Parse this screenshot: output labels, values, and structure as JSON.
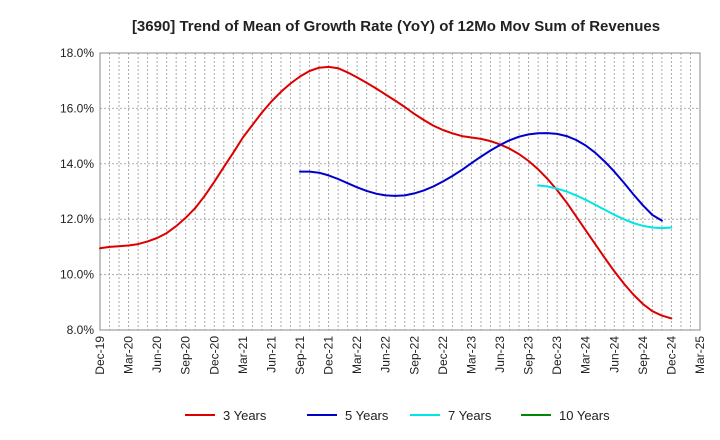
{
  "chart_data": {
    "type": "line",
    "title": "[3690]  Trend of Mean of Growth Rate (YoY) of 12Mo Mov Sum of Revenues",
    "xlabel": "",
    "ylabel": "",
    "ylim": [
      8.0,
      18.0
    ],
    "y_ticks": [
      "8.0%",
      "10.0%",
      "12.0%",
      "14.0%",
      "16.0%",
      "18.0%"
    ],
    "y_tick_values": [
      8,
      10,
      12,
      14,
      16,
      18
    ],
    "x_ticks": [
      "Dec-19",
      "Mar-20",
      "Jun-20",
      "Sep-20",
      "Dec-20",
      "Mar-21",
      "Jun-21",
      "Sep-21",
      "Dec-21",
      "Mar-22",
      "Jun-22",
      "Sep-22",
      "Dec-22",
      "Mar-23",
      "Jun-23",
      "Sep-23",
      "Dec-23",
      "Mar-24",
      "Jun-24",
      "Sep-24",
      "Dec-24",
      "Mar-25"
    ],
    "grid": true,
    "legend_position": "bottom",
    "series": [
      {
        "name": "3 Years",
        "color": "#dd0000",
        "start_index": 0,
        "values": [
          10.95,
          11.0,
          11.02,
          11.05,
          11.1,
          11.2,
          11.32,
          11.5,
          11.75,
          12.05,
          12.4,
          12.85,
          13.35,
          13.88,
          14.4,
          14.95,
          15.4,
          15.85,
          16.25,
          16.6,
          16.9,
          17.15,
          17.35,
          17.47,
          17.5,
          17.45,
          17.3,
          17.12,
          16.92,
          16.72,
          16.5,
          16.28,
          16.05,
          15.8,
          15.58,
          15.38,
          15.22,
          15.1,
          15.0,
          14.95,
          14.9,
          14.82,
          14.7,
          14.55,
          14.35,
          14.1,
          13.8,
          13.45,
          13.05,
          12.6,
          12.1,
          11.6,
          11.1,
          10.6,
          10.12,
          9.68,
          9.28,
          8.94,
          8.68,
          8.52,
          8.42
        ]
      },
      {
        "name": "5 Years",
        "color": "#0000cc",
        "start_index": 21,
        "values": [
          13.72,
          13.72,
          13.68,
          13.58,
          13.45,
          13.3,
          13.15,
          13.02,
          12.92,
          12.86,
          12.84,
          12.86,
          12.93,
          13.04,
          13.18,
          13.36,
          13.56,
          13.78,
          14.02,
          14.26,
          14.48,
          14.68,
          14.85,
          14.98,
          15.06,
          15.1,
          15.11,
          15.08,
          15.0,
          14.86,
          14.66,
          14.4,
          14.08,
          13.72,
          13.32,
          12.9,
          12.5,
          12.15,
          11.95
        ]
      },
      {
        "name": "7 Years",
        "color": "#00e5e5",
        "start_index": 46,
        "values": [
          13.22,
          13.18,
          13.1,
          13.0,
          12.86,
          12.7,
          12.52,
          12.34,
          12.16,
          12.0,
          11.86,
          11.76,
          11.7,
          11.68,
          11.7
        ]
      },
      {
        "name": "10 Years",
        "color": "#008800",
        "start_index": 0,
        "values": []
      }
    ]
  }
}
